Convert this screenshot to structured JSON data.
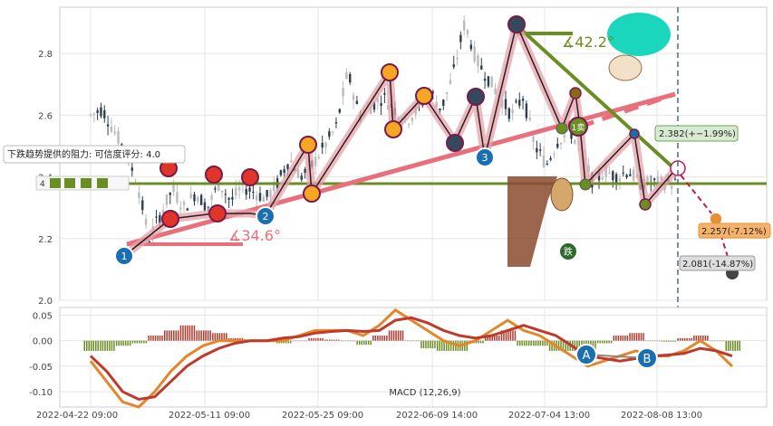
{
  "chart_data": [
    {
      "type": "candlestick",
      "yticks": [
        "2.0",
        "2.2",
        "2.4",
        "2.6",
        "2.8"
      ],
      "ylim": [
        2.0,
        2.95
      ],
      "xticks": [
        "2022-04-22 09:00",
        "2022-05-11 09:00",
        "2022-05-25 09:00",
        "2022-06-09 14:00",
        "2022-07-04 13:00",
        "2022-08-08 13:00"
      ],
      "support_level": 2.4,
      "support_label": "4",
      "annotation_box": "下跌趋势提供的阻力: 可信度评分: 4.0",
      "angle_labels": [
        "∡34.6°",
        "∡42.2°"
      ],
      "markers": [
        "1",
        "2",
        "3",
        "1卖",
        "A",
        "B"
      ],
      "price_callouts": [
        {
          "text": "2.382(+−1.99%)",
          "color": "#6aa84f"
        },
        {
          "text": "2.257(-7.12%)",
          "color": "#e69138"
        },
        {
          "text": "2.081(-14.87%)",
          "color": "#999999"
        }
      ],
      "close_path": [
        {
          "x": 0.0,
          "y": 2.6
        },
        {
          "x": 0.02,
          "y": 2.62
        },
        {
          "x": 0.04,
          "y": 2.55
        },
        {
          "x": 0.06,
          "y": 2.48
        },
        {
          "x": 0.08,
          "y": 2.38
        },
        {
          "x": 0.1,
          "y": 2.2
        },
        {
          "x": 0.12,
          "y": 2.28
        },
        {
          "x": 0.14,
          "y": 2.36
        },
        {
          "x": 0.16,
          "y": 2.3
        },
        {
          "x": 0.18,
          "y": 2.35
        },
        {
          "x": 0.2,
          "y": 2.3
        },
        {
          "x": 0.22,
          "y": 2.38
        },
        {
          "x": 0.24,
          "y": 2.32
        },
        {
          "x": 0.26,
          "y": 2.37
        },
        {
          "x": 0.28,
          "y": 2.35
        },
        {
          "x": 0.3,
          "y": 2.33
        },
        {
          "x": 0.32,
          "y": 2.38
        },
        {
          "x": 0.34,
          "y": 2.46
        },
        {
          "x": 0.36,
          "y": 2.4
        },
        {
          "x": 0.38,
          "y": 2.44
        },
        {
          "x": 0.4,
          "y": 2.5
        },
        {
          "x": 0.42,
          "y": 2.56
        },
        {
          "x": 0.44,
          "y": 2.74
        },
        {
          "x": 0.46,
          "y": 2.6
        },
        {
          "x": 0.48,
          "y": 2.63
        },
        {
          "x": 0.5,
          "y": 2.66
        },
        {
          "x": 0.52,
          "y": 2.62
        },
        {
          "x": 0.54,
          "y": 2.58
        },
        {
          "x": 0.56,
          "y": 2.62
        },
        {
          "x": 0.58,
          "y": 2.68
        },
        {
          "x": 0.6,
          "y": 2.62
        },
        {
          "x": 0.62,
          "y": 2.73
        },
        {
          "x": 0.64,
          "y": 2.9
        },
        {
          "x": 0.66,
          "y": 2.78
        },
        {
          "x": 0.68,
          "y": 2.72
        },
        {
          "x": 0.7,
          "y": 2.66
        },
        {
          "x": 0.72,
          "y": 2.6
        },
        {
          "x": 0.74,
          "y": 2.66
        },
        {
          "x": 0.76,
          "y": 2.5
        },
        {
          "x": 0.78,
          "y": 2.44
        },
        {
          "x": 0.8,
          "y": 2.52
        },
        {
          "x": 0.82,
          "y": 2.55
        },
        {
          "x": 0.84,
          "y": 2.48
        },
        {
          "x": 0.86,
          "y": 2.38
        },
        {
          "x": 0.88,
          "y": 2.42
        },
        {
          "x": 0.9,
          "y": 2.4
        },
        {
          "x": 0.92,
          "y": 2.42
        },
        {
          "x": 0.94,
          "y": 2.38
        }
      ]
    },
    {
      "type": "line",
      "title": "MACD (12,26,9)",
      "yticks": [
        "0.05",
        "0.00",
        "-0.05",
        "-0.10"
      ],
      "ylim": [
        -0.13,
        0.065
      ],
      "series": [
        {
          "color": "#e5862b",
          "values": [
            -0.04,
            -0.08,
            -0.12,
            -0.13,
            -0.1,
            -0.06,
            -0.03,
            -0.01,
            0.0,
            0.0,
            0.0,
            0.0,
            0.0,
            0.01,
            0.02,
            0.02,
            0.02,
            0.01,
            0.03,
            0.06,
            0.04,
            0.02,
            0.0,
            -0.01,
            0.0,
            0.02,
            0.04,
            0.02,
            0.01,
            -0.01,
            -0.03,
            -0.05,
            -0.04,
            -0.03,
            -0.02,
            -0.03,
            -0.03,
            -0.02,
            0.0,
            -0.02,
            -0.05
          ]
        },
        {
          "color": "#c0392b",
          "values": [
            -0.03,
            -0.06,
            -0.1,
            -0.115,
            -0.11,
            -0.08,
            -0.05,
            -0.03,
            -0.015,
            -0.005,
            0.0,
            0.0,
            0.005,
            0.008,
            0.015,
            0.018,
            0.02,
            0.018,
            0.02,
            0.04,
            0.045,
            0.035,
            0.02,
            0.01,
            0.005,
            0.01,
            0.02,
            0.03,
            0.02,
            0.01,
            -0.01,
            -0.03,
            -0.035,
            -0.04,
            -0.035,
            -0.03,
            -0.028,
            -0.025,
            -0.015,
            -0.02,
            -0.03
          ]
        }
      ],
      "histogram": [
        -0.02,
        -0.02,
        -0.01,
        -0.005,
        0.01,
        0.02,
        0.03,
        0.02,
        0.015,
        0.005,
        0.0,
        0.0,
        -0.005,
        0.0,
        0.005,
        0.002,
        0.0,
        -0.008,
        0.01,
        0.02,
        0.0,
        -0.015,
        -0.02,
        -0.02,
        -0.005,
        0.01,
        0.02,
        -0.01,
        -0.01,
        -0.02,
        -0.02,
        -0.02,
        -0.005,
        0.01,
        0.015,
        0.0,
        -0.002,
        0.005,
        0.01,
        0.0,
        -0.02
      ]
    }
  ]
}
